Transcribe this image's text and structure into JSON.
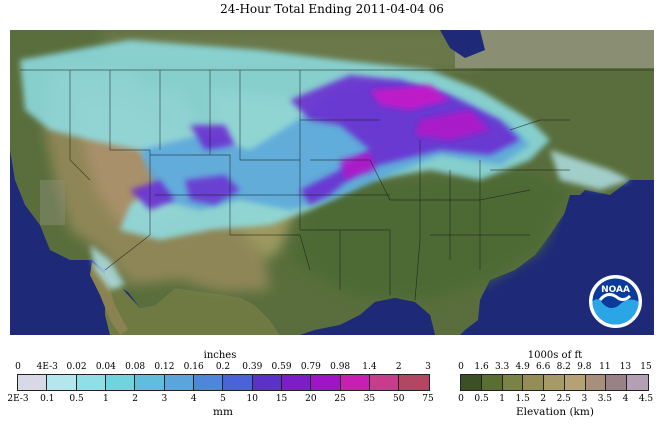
{
  "title": "24-Hour Total Ending 2011-04-04 06",
  "logo_text": "NOAA",
  "precip_legend": {
    "top_unit": "inches",
    "bottom_unit": "mm",
    "inches_ticks": [
      "0",
      "4E-3",
      "0.02",
      "0.04",
      "0.08",
      "0.12",
      "0.16",
      "0.2",
      "0.39",
      "0.59",
      "0.79",
      "0.98",
      "1.4",
      "2",
      "3"
    ],
    "mm_ticks": [
      "2E-3",
      "0.1",
      "0.5",
      "1",
      "2",
      "3",
      "4",
      "5",
      "10",
      "15",
      "20",
      "25",
      "35",
      "50",
      "75"
    ],
    "colors": [
      "#d8d8e6",
      "#b4e6ee",
      "#8edfe6",
      "#6fd4de",
      "#5fbedc",
      "#5aa6dc",
      "#4f86da",
      "#4b63d8",
      "#5a32c8",
      "#7c1ec8",
      "#a014c8",
      "#c81eb4",
      "#c83c8c",
      "#b44664"
    ]
  },
  "elevation_legend": {
    "top_unit": "1000s of ft",
    "bottom_unit": "Elevation (km)",
    "ft_ticks": [
      "0",
      "1.6",
      "3.3",
      "4.9",
      "6.6",
      "8.2",
      "9.8",
      "11",
      "13",
      "15"
    ],
    "km_ticks": [
      "0",
      "0.5",
      "1",
      "1.5",
      "2",
      "2.5",
      "3",
      "3.5",
      "4",
      "4.5"
    ],
    "colors": [
      "#3c5028",
      "#5a6e32",
      "#7a8246",
      "#948e56",
      "#a69a66",
      "#b4a274",
      "#a6907c",
      "#988288",
      "#b4a0b4"
    ]
  }
}
